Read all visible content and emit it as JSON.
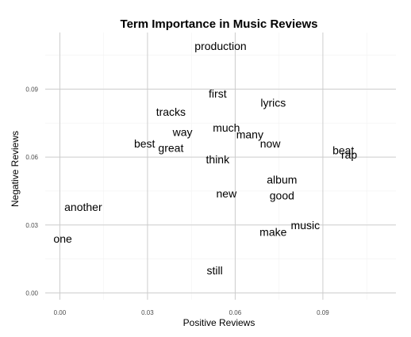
{
  "chart_data": {
    "type": "scatter",
    "title": "Term Importance in Music Reviews",
    "xlabel": "Positive Reviews",
    "ylabel": "Negative Reviews",
    "xlim": [
      -0.005,
      0.115
    ],
    "ylim": [
      -0.003,
      0.115
    ],
    "x_ticks": [
      0.0,
      0.03,
      0.06,
      0.09
    ],
    "y_ticks": [
      0.0,
      0.03,
      0.06,
      0.09
    ],
    "x_tick_labels": [
      "0.00",
      "0.03",
      "0.06",
      "0.09"
    ],
    "y_tick_labels": [
      "0.00",
      "0.03",
      "0.06",
      "0.09"
    ],
    "grid": true,
    "legend": "none",
    "label_color": "#000000",
    "points": [
      {
        "label": "production",
        "x": 0.055,
        "y": 0.109
      },
      {
        "label": "first",
        "x": 0.054,
        "y": 0.088
      },
      {
        "label": "lyrics",
        "x": 0.073,
        "y": 0.084
      },
      {
        "label": "tracks",
        "x": 0.038,
        "y": 0.08
      },
      {
        "label": "much",
        "x": 0.057,
        "y": 0.073
      },
      {
        "label": "way",
        "x": 0.042,
        "y": 0.071
      },
      {
        "label": "many",
        "x": 0.065,
        "y": 0.07
      },
      {
        "label": "now",
        "x": 0.072,
        "y": 0.066
      },
      {
        "label": "best",
        "x": 0.029,
        "y": 0.066
      },
      {
        "label": "great",
        "x": 0.038,
        "y": 0.064
      },
      {
        "label": "beat",
        "x": 0.097,
        "y": 0.063
      },
      {
        "label": "rap",
        "x": 0.099,
        "y": 0.061
      },
      {
        "label": "think",
        "x": 0.054,
        "y": 0.059
      },
      {
        "label": "album",
        "x": 0.076,
        "y": 0.05
      },
      {
        "label": "new",
        "x": 0.057,
        "y": 0.044
      },
      {
        "label": "good",
        "x": 0.076,
        "y": 0.043
      },
      {
        "label": "another",
        "x": 0.008,
        "y": 0.038
      },
      {
        "label": "music",
        "x": 0.084,
        "y": 0.03
      },
      {
        "label": "make",
        "x": 0.073,
        "y": 0.027
      },
      {
        "label": "one",
        "x": 0.001,
        "y": 0.024
      },
      {
        "label": "still",
        "x": 0.053,
        "y": 0.01
      }
    ]
  }
}
